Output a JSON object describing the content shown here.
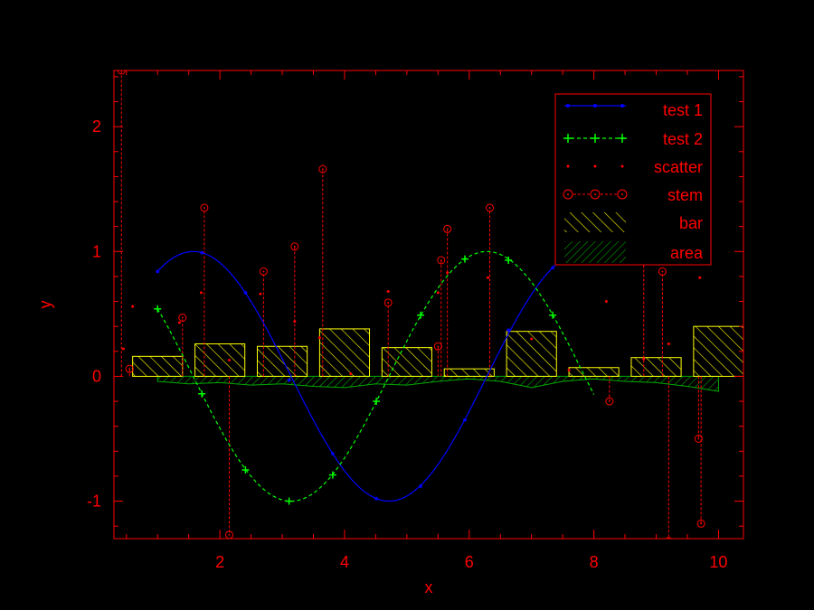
{
  "chart_data": {
    "type": "line",
    "xlabel": "x",
    "ylabel": "y",
    "xlim": [
      0.3,
      10.4
    ],
    "ylim": [
      -1.3,
      2.45
    ],
    "xticks": [
      2,
      4,
      6,
      8,
      10
    ],
    "yticks": [
      -1,
      0,
      1,
      2
    ],
    "tick_labels_x": [
      "2",
      "4",
      "6",
      "8",
      "10"
    ],
    "tick_labels_y": [
      "-1",
      "0",
      "1",
      "2"
    ],
    "grid": false,
    "legend": "top-right",
    "colors": {
      "background": "#000000",
      "axes": "#ff0000",
      "test1": "#0000ff",
      "test2": "#00ff00",
      "scatter": "#ff0000",
      "stem": "#ff0000",
      "bar": "#ffff00",
      "area": "#00aa00"
    },
    "series": [
      {
        "name": "test 1",
        "kind": "line",
        "curve": "sin",
        "x_range": [
          1.0,
          7.85
        ],
        "markers_x": [
          1.0,
          1.71,
          2.41,
          3.11,
          3.81,
          4.51,
          5.22,
          5.93,
          6.63,
          7.34
        ],
        "markers_y": [
          0.84,
          0.99,
          0.67,
          -0.03,
          -0.62,
          -0.98,
          -0.88,
          -0.35,
          0.37,
          0.87
        ]
      },
      {
        "name": "test 2",
        "kind": "line",
        "curve": "cos",
        "x_range": [
          1.0,
          8.0
        ],
        "markers_x": [
          1.0,
          1.71,
          2.41,
          3.11,
          3.81,
          4.51,
          5.22,
          5.93,
          6.63,
          7.34
        ],
        "markers_y": [
          0.54,
          -0.14,
          -0.75,
          -1.0,
          -0.79,
          -0.2,
          0.49,
          0.94,
          0.93,
          0.49
        ]
      },
      {
        "name": "scatter",
        "kind": "scatter",
        "x": [
          0.45,
          0.6,
          1.35,
          1.7,
          2.15,
          2.65,
          3.2,
          3.6,
          4.1,
          4.7,
          5.5,
          5.65,
          6.3,
          7.0,
          7.6,
          8.2,
          8.8,
          9.2,
          9.7
        ],
        "y": [
          0.22,
          0.56,
          0.43,
          0.67,
          0.13,
          0.66,
          0.44,
          0.31,
          0.02,
          0.68,
          0.67,
          0.83,
          0.79,
          0.3,
          0.05,
          0.6,
          0.14,
          0.26,
          0.79
        ]
      },
      {
        "name": "stem",
        "kind": "stem",
        "x": [
          0.42,
          0.55,
          1.4,
          1.75,
          2.15,
          2.7,
          3.2,
          3.65,
          4.7,
          5.5,
          5.55,
          5.65,
          6.33,
          8.25,
          8.8,
          9.1,
          9.2,
          9.68,
          9.72
        ],
        "y": [
          2.45,
          0.06,
          0.47,
          1.35,
          -1.27,
          0.84,
          1.04,
          1.66,
          0.59,
          0.24,
          0.93,
          1.18,
          1.35,
          -0.2,
          1.8,
          0.84,
          -1.32,
          -0.5,
          -1.18
        ]
      },
      {
        "name": "bar",
        "kind": "bar",
        "x": [
          1.0,
          2.0,
          3.0,
          4.0,
          5.0,
          6.0,
          7.0,
          8.0,
          9.0,
          10.0
        ],
        "values": [
          0.16,
          0.26,
          0.24,
          0.38,
          0.23,
          0.06,
          0.36,
          0.07,
          0.15,
          0.4
        ],
        "width": 0.8
      },
      {
        "name": "area",
        "kind": "area",
        "x": [
          1.0,
          1.5,
          2.0,
          2.5,
          3.0,
          3.5,
          4.0,
          4.5,
          5.0,
          5.5,
          6.0,
          6.5,
          7.0,
          7.5,
          8.0,
          8.5,
          9.0,
          9.5,
          10.0
        ],
        "values": [
          -0.04,
          -0.06,
          -0.05,
          -0.07,
          -0.06,
          -0.08,
          -0.09,
          -0.06,
          -0.07,
          -0.04,
          -0.02,
          -0.04,
          -0.09,
          -0.04,
          -0.02,
          -0.04,
          -0.05,
          -0.08,
          -0.12
        ]
      }
    ]
  }
}
